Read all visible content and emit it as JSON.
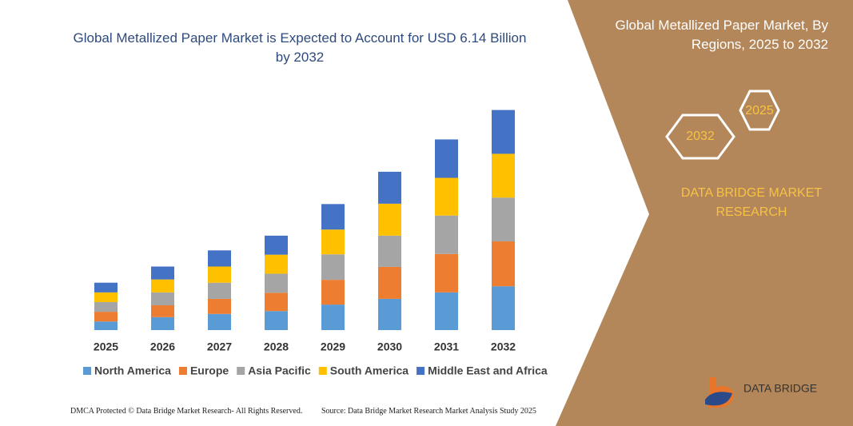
{
  "chart_data": {
    "type": "stacked_bar",
    "title": "Global Metallized Paper Market is Expected to Account for USD 6.14 Billion by 2032",
    "categories": [
      "2025",
      "2026",
      "2027",
      "2028",
      "2029",
      "2030",
      "2031",
      "2032"
    ],
    "series": [
      {
        "name": "North America",
        "color": "#5b9bd5",
        "values": [
          0.24,
          0.36,
          0.45,
          0.53,
          0.71,
          0.87,
          1.05,
          1.22
        ]
      },
      {
        "name": "Europe",
        "color": "#ed7d31",
        "values": [
          0.27,
          0.33,
          0.42,
          0.51,
          0.69,
          0.89,
          1.07,
          1.25
        ]
      },
      {
        "name": "Asia Pacific",
        "color": "#a5a5a5",
        "values": [
          0.27,
          0.36,
          0.45,
          0.53,
          0.71,
          0.87,
          1.07,
          1.22
        ]
      },
      {
        "name": "South America",
        "color": "#ffc000",
        "values": [
          0.27,
          0.36,
          0.45,
          0.53,
          0.69,
          0.89,
          1.05,
          1.22
        ]
      },
      {
        "name": "Middle East and Africa",
        "color": "#4472c4",
        "values": [
          0.27,
          0.36,
          0.45,
          0.53,
          0.71,
          0.89,
          1.07,
          1.22
        ]
      }
    ],
    "ylim": [
      0,
      6.5
    ],
    "legend": "bottom"
  },
  "panel": {
    "title": "Global Metallized Paper Market, By Regions, 2025 to 2032",
    "hex_front": "2025",
    "hex_back": "2032",
    "brand": "DATA BRIDGE MARKET RESEARCH",
    "logo": "DATA BRIDGE"
  },
  "footer": {
    "left": "DMCA Protected © Data Bridge Market Research- All Rights Reserved.",
    "right": "Source: Data Bridge Market Research Market Analysis Study 2025"
  }
}
